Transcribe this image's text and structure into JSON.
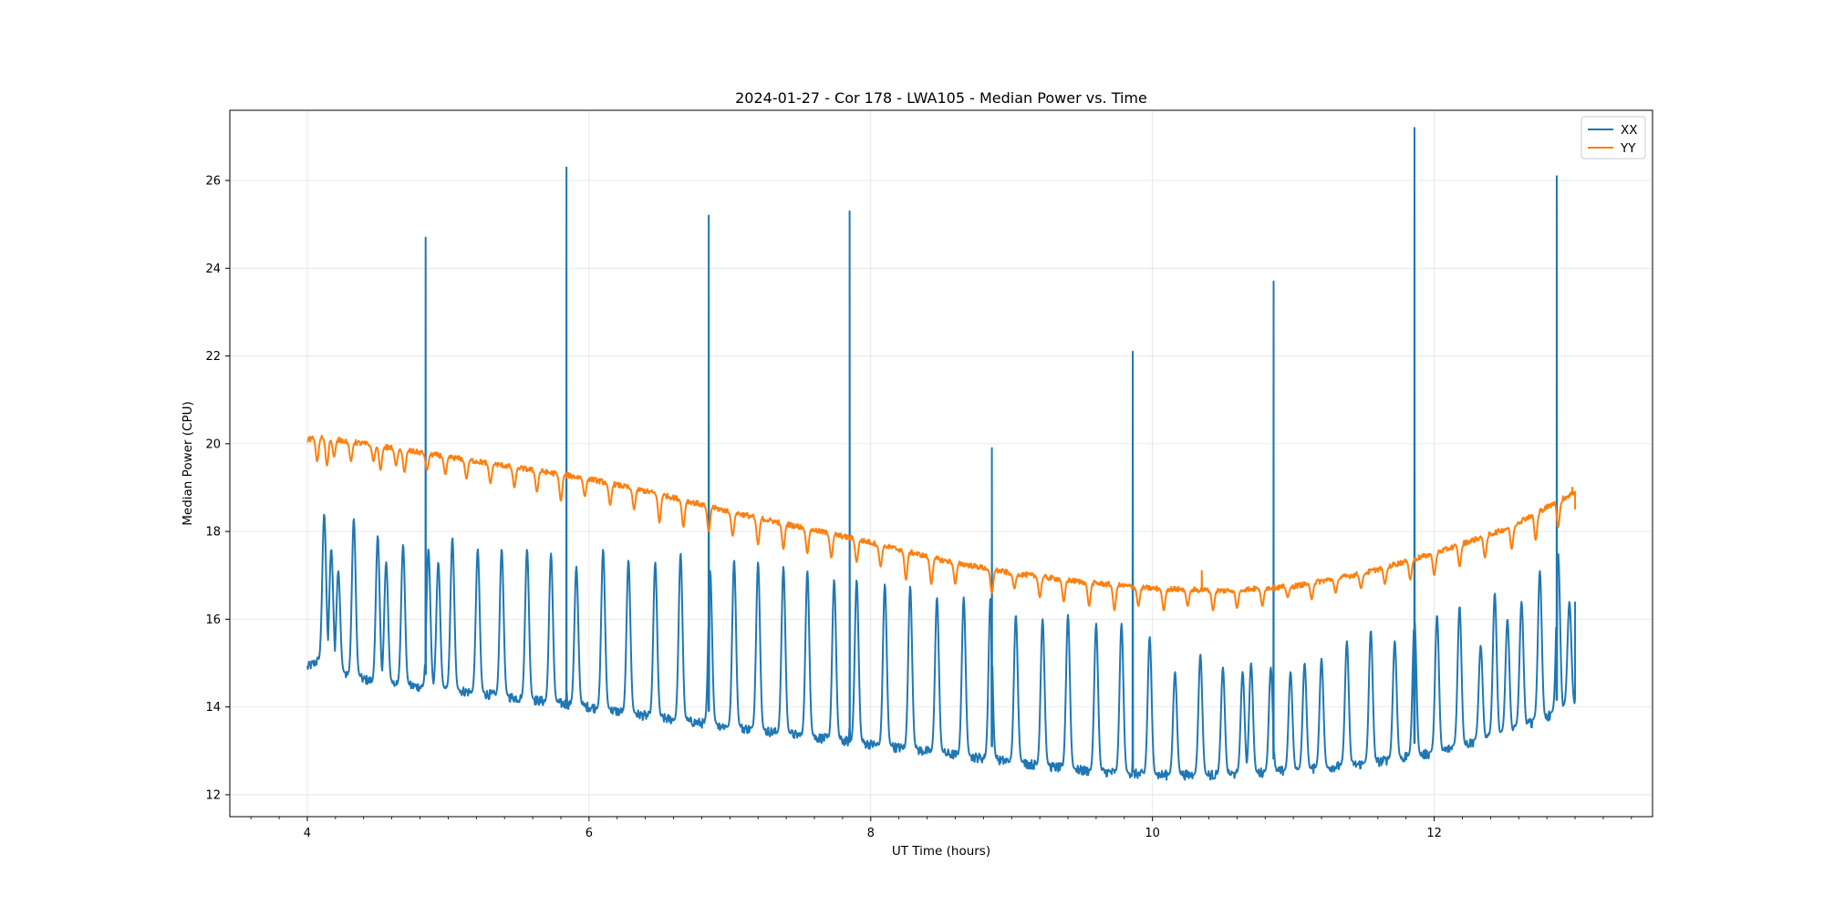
{
  "chart_data": {
    "type": "line",
    "title": "2024-01-27 - Cor 178 - LWA105 - Median Power vs. Time",
    "xlabel": "UT Time (hours)",
    "ylabel": "Median Power (CPU)",
    "xlim": [
      3.45,
      13.55
    ],
    "ylim": [
      11.5,
      27.6
    ],
    "x_ticks": [
      4,
      6,
      8,
      10,
      12
    ],
    "y_ticks": [
      12,
      14,
      16,
      18,
      20,
      22,
      24,
      26
    ],
    "x_minor_step": 0.2,
    "grid": true,
    "legend_position": "top-right",
    "series": [
      {
        "name": "XX",
        "color": "#1f77b4",
        "baseline": [
          [
            4.0,
            14.9
          ],
          [
            4.1,
            15.1
          ],
          [
            4.2,
            14.8
          ],
          [
            4.5,
            14.55
          ],
          [
            5.0,
            14.4
          ],
          [
            5.5,
            14.2
          ],
          [
            6.0,
            14.0
          ],
          [
            6.5,
            13.75
          ],
          [
            7.0,
            13.55
          ],
          [
            7.5,
            13.35
          ],
          [
            8.0,
            13.15
          ],
          [
            8.5,
            12.95
          ],
          [
            9.0,
            12.75
          ],
          [
            9.5,
            12.55
          ],
          [
            10.0,
            12.45
          ],
          [
            10.5,
            12.45
          ],
          [
            11.0,
            12.55
          ],
          [
            11.5,
            12.7
          ],
          [
            12.0,
            12.95
          ],
          [
            12.5,
            13.4
          ],
          [
            12.9,
            13.9
          ],
          [
            13.0,
            14.1
          ]
        ],
        "bumps": [
          [
            4.12,
            18.4
          ],
          [
            4.17,
            17.6
          ],
          [
            4.22,
            17.1
          ],
          [
            4.33,
            18.3
          ],
          [
            4.5,
            17.9
          ],
          [
            4.56,
            17.3
          ],
          [
            4.68,
            17.7
          ],
          [
            4.86,
            17.6
          ],
          [
            4.93,
            17.3
          ],
          [
            5.03,
            17.85
          ],
          [
            5.21,
            17.6
          ],
          [
            5.38,
            17.6
          ],
          [
            5.56,
            17.6
          ],
          [
            5.73,
            17.5
          ],
          [
            5.91,
            17.2
          ],
          [
            6.1,
            17.6
          ],
          [
            6.28,
            17.35
          ],
          [
            6.47,
            17.3
          ],
          [
            6.65,
            17.5
          ],
          [
            6.86,
            17.1
          ],
          [
            7.03,
            17.35
          ],
          [
            7.2,
            17.3
          ],
          [
            7.38,
            17.2
          ],
          [
            7.55,
            17.1
          ],
          [
            7.74,
            16.9
          ],
          [
            7.9,
            16.9
          ],
          [
            8.1,
            16.8
          ],
          [
            8.28,
            16.75
          ],
          [
            8.47,
            16.5
          ],
          [
            8.66,
            16.5
          ],
          [
            8.85,
            16.5
          ],
          [
            9.03,
            16.1
          ],
          [
            9.22,
            16.0
          ],
          [
            9.4,
            16.1
          ],
          [
            9.6,
            15.9
          ],
          [
            9.78,
            15.9
          ],
          [
            9.98,
            15.6
          ],
          [
            10.16,
            14.8
          ],
          [
            10.34,
            15.2
          ],
          [
            10.5,
            14.9
          ],
          [
            10.64,
            14.8
          ],
          [
            10.7,
            15.0
          ],
          [
            10.84,
            14.9
          ],
          [
            10.98,
            14.8
          ],
          [
            11.08,
            15.0
          ],
          [
            11.2,
            15.1
          ],
          [
            11.38,
            15.5
          ],
          [
            11.55,
            15.75
          ],
          [
            11.72,
            15.5
          ],
          [
            11.86,
            16.0
          ],
          [
            12.02,
            16.1
          ],
          [
            12.18,
            16.3
          ],
          [
            12.33,
            15.4
          ],
          [
            12.43,
            16.6
          ],
          [
            12.52,
            16.0
          ],
          [
            12.62,
            16.4
          ],
          [
            12.75,
            17.1
          ],
          [
            12.88,
            17.5
          ],
          [
            12.96,
            16.4
          ]
        ],
        "spikes": [
          [
            4.84,
            24.7
          ],
          [
            5.84,
            26.3
          ],
          [
            6.85,
            25.2
          ],
          [
            7.85,
            25.3
          ],
          [
            8.86,
            19.9
          ],
          [
            9.86,
            22.1
          ],
          [
            10.86,
            23.7
          ],
          [
            11.86,
            27.2
          ],
          [
            12.87,
            26.1
          ]
        ],
        "end_point": [
          13.0,
          16.4
        ]
      },
      {
        "name": "YY",
        "color": "#ff7f0e",
        "baseline": [
          [
            4.0,
            20.1
          ],
          [
            4.1,
            20.15
          ],
          [
            4.3,
            20.05
          ],
          [
            4.6,
            19.9
          ],
          [
            5.0,
            19.7
          ],
          [
            5.5,
            19.45
          ],
          [
            6.0,
            19.2
          ],
          [
            6.5,
            18.85
          ],
          [
            7.0,
            18.45
          ],
          [
            7.5,
            18.1
          ],
          [
            8.0,
            17.75
          ],
          [
            8.5,
            17.35
          ],
          [
            9.0,
            17.05
          ],
          [
            9.5,
            16.85
          ],
          [
            10.0,
            16.7
          ],
          [
            10.5,
            16.65
          ],
          [
            11.0,
            16.75
          ],
          [
            11.5,
            17.05
          ],
          [
            12.0,
            17.5
          ],
          [
            12.5,
            18.05
          ],
          [
            12.8,
            18.55
          ],
          [
            13.0,
            18.9
          ]
        ],
        "dips": [
          [
            4.07,
            19.6
          ],
          [
            4.14,
            19.5
          ],
          [
            4.19,
            19.7
          ],
          [
            4.31,
            19.6
          ],
          [
            4.47,
            19.6
          ],
          [
            4.52,
            19.4
          ],
          [
            4.63,
            19.5
          ],
          [
            4.69,
            19.35
          ],
          [
            4.85,
            19.4
          ],
          [
            4.98,
            19.3
          ],
          [
            5.13,
            19.2
          ],
          [
            5.3,
            19.1
          ],
          [
            5.47,
            19.0
          ],
          [
            5.63,
            18.9
          ],
          [
            5.8,
            18.7
          ],
          [
            5.97,
            18.8
          ],
          [
            6.15,
            18.6
          ],
          [
            6.32,
            18.5
          ],
          [
            6.5,
            18.2
          ],
          [
            6.67,
            18.1
          ],
          [
            6.85,
            18.0
          ],
          [
            7.02,
            17.9
          ],
          [
            7.2,
            17.7
          ],
          [
            7.38,
            17.6
          ],
          [
            7.55,
            17.5
          ],
          [
            7.72,
            17.4
          ],
          [
            7.9,
            17.3
          ],
          [
            8.07,
            17.2
          ],
          [
            8.25,
            16.9
          ],
          [
            8.43,
            16.8
          ],
          [
            8.6,
            16.8
          ],
          [
            8.86,
            16.6
          ],
          [
            9.02,
            16.7
          ],
          [
            9.2,
            16.5
          ],
          [
            9.37,
            16.4
          ],
          [
            9.55,
            16.3
          ],
          [
            9.73,
            16.2
          ],
          [
            9.9,
            16.3
          ],
          [
            10.08,
            16.2
          ],
          [
            10.25,
            16.3
          ],
          [
            10.43,
            16.2
          ],
          [
            10.6,
            16.25
          ],
          [
            10.78,
            16.3
          ],
          [
            10.96,
            16.5
          ],
          [
            11.13,
            16.45
          ],
          [
            11.3,
            16.6
          ],
          [
            11.48,
            16.7
          ],
          [
            11.65,
            16.8
          ],
          [
            11.83,
            16.9
          ],
          [
            12.0,
            17.0
          ],
          [
            12.18,
            17.2
          ],
          [
            12.36,
            17.4
          ],
          [
            12.55,
            17.6
          ],
          [
            12.72,
            17.8
          ],
          [
            12.88,
            18.1
          ]
        ],
        "spike_up": [
          [
            10.35,
            17.1
          ],
          [
            12.98,
            19.0
          ]
        ],
        "end_point": [
          13.0,
          18.5
        ]
      }
    ]
  }
}
